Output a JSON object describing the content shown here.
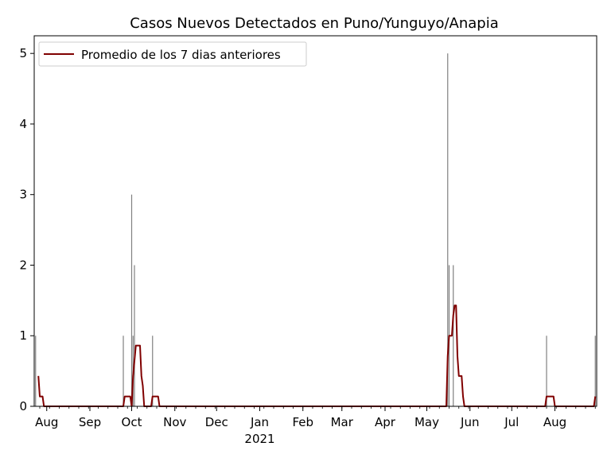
{
  "chart_data": {
    "type": "bar",
    "title": "Casos Nuevos Detectados en Puno/Yunguyo/Anapia",
    "xlabel": "",
    "ylabel": "",
    "x_range": [
      "2020-07-23",
      "2021-08-31"
    ],
    "ylim": [
      0,
      5.25
    ],
    "y_ticks": [
      0,
      1,
      2,
      3,
      4,
      5
    ],
    "x_ticks": [
      {
        "date": "2020-08-01",
        "label": "Aug",
        "sublabel": ""
      },
      {
        "date": "2020-09-01",
        "label": "Sep",
        "sublabel": ""
      },
      {
        "date": "2020-10-01",
        "label": "Oct",
        "sublabel": ""
      },
      {
        "date": "2020-11-01",
        "label": "Nov",
        "sublabel": ""
      },
      {
        "date": "2020-12-01",
        "label": "Dec",
        "sublabel": ""
      },
      {
        "date": "2021-01-01",
        "label": "Jan",
        "sublabel": "2021"
      },
      {
        "date": "2021-02-01",
        "label": "Feb",
        "sublabel": ""
      },
      {
        "date": "2021-03-01",
        "label": "Mar",
        "sublabel": ""
      },
      {
        "date": "2021-04-01",
        "label": "Apr",
        "sublabel": ""
      },
      {
        "date": "2021-05-01",
        "label": "May",
        "sublabel": ""
      },
      {
        "date": "2021-06-01",
        "label": "Jun",
        "sublabel": ""
      },
      {
        "date": "2021-07-01",
        "label": "Jul",
        "sublabel": ""
      },
      {
        "date": "2021-08-01",
        "label": "Aug",
        "sublabel": ""
      }
    ],
    "bar_series": {
      "name": "",
      "color": "#808080",
      "points": [
        {
          "x": "2020-07-24",
          "y": 1
        },
        {
          "x": "2020-09-25",
          "y": 1
        },
        {
          "x": "2020-10-01",
          "y": 3
        },
        {
          "x": "2020-10-02",
          "y": 1
        },
        {
          "x": "2020-10-03",
          "y": 2
        },
        {
          "x": "2020-10-16",
          "y": 1
        },
        {
          "x": "2021-05-16",
          "y": 5
        },
        {
          "x": "2021-05-17",
          "y": 2
        },
        {
          "x": "2021-05-20",
          "y": 2
        },
        {
          "x": "2021-07-26",
          "y": 1
        },
        {
          "x": "2021-08-30",
          "y": 1
        }
      ]
    },
    "line_series": {
      "name": "Promedio de los 7 dias anteriores",
      "color": "#800000",
      "points": [
        {
          "x": "2020-07-26",
          "y": 0.43
        },
        {
          "x": "2020-07-27",
          "y": 0.14
        },
        {
          "x": "2020-07-29",
          "y": 0.14
        },
        {
          "x": "2020-07-30",
          "y": 0
        },
        {
          "x": "2020-09-25",
          "y": 0
        },
        {
          "x": "2020-09-26",
          "y": 0.14
        },
        {
          "x": "2020-09-30",
          "y": 0.14
        },
        {
          "x": "2020-10-01",
          "y": 0
        },
        {
          "x": "2020-10-02",
          "y": 0.43
        },
        {
          "x": "2020-10-04",
          "y": 0.86
        },
        {
          "x": "2020-10-07",
          "y": 0.86
        },
        {
          "x": "2020-10-08",
          "y": 0.43
        },
        {
          "x": "2020-10-09",
          "y": 0.29
        },
        {
          "x": "2020-10-10",
          "y": 0
        },
        {
          "x": "2020-10-15",
          "y": 0
        },
        {
          "x": "2020-10-16",
          "y": 0.14
        },
        {
          "x": "2020-10-20",
          "y": 0.14
        },
        {
          "x": "2020-10-21",
          "y": 0
        },
        {
          "x": "2021-05-15",
          "y": 0
        },
        {
          "x": "2021-05-16",
          "y": 0.71
        },
        {
          "x": "2021-05-17",
          "y": 1.0
        },
        {
          "x": "2021-05-19",
          "y": 1.0
        },
        {
          "x": "2021-05-20",
          "y": 1.29
        },
        {
          "x": "2021-05-21",
          "y": 1.43
        },
        {
          "x": "2021-05-22",
          "y": 1.43
        },
        {
          "x": "2021-05-23",
          "y": 0.71
        },
        {
          "x": "2021-05-24",
          "y": 0.43
        },
        {
          "x": "2021-05-26",
          "y": 0.43
        },
        {
          "x": "2021-05-27",
          "y": 0.14
        },
        {
          "x": "2021-05-28",
          "y": 0
        },
        {
          "x": "2021-07-25",
          "y": 0
        },
        {
          "x": "2021-07-26",
          "y": 0.14
        },
        {
          "x": "2021-07-31",
          "y": 0.14
        },
        {
          "x": "2021-08-01",
          "y": 0
        },
        {
          "x": "2021-08-29",
          "y": 0
        },
        {
          "x": "2021-08-30",
          "y": 0.14
        }
      ]
    },
    "legend": {
      "position": "upper-left",
      "entries": [
        "Promedio de los 7 dias anteriores"
      ]
    },
    "grid": false
  }
}
